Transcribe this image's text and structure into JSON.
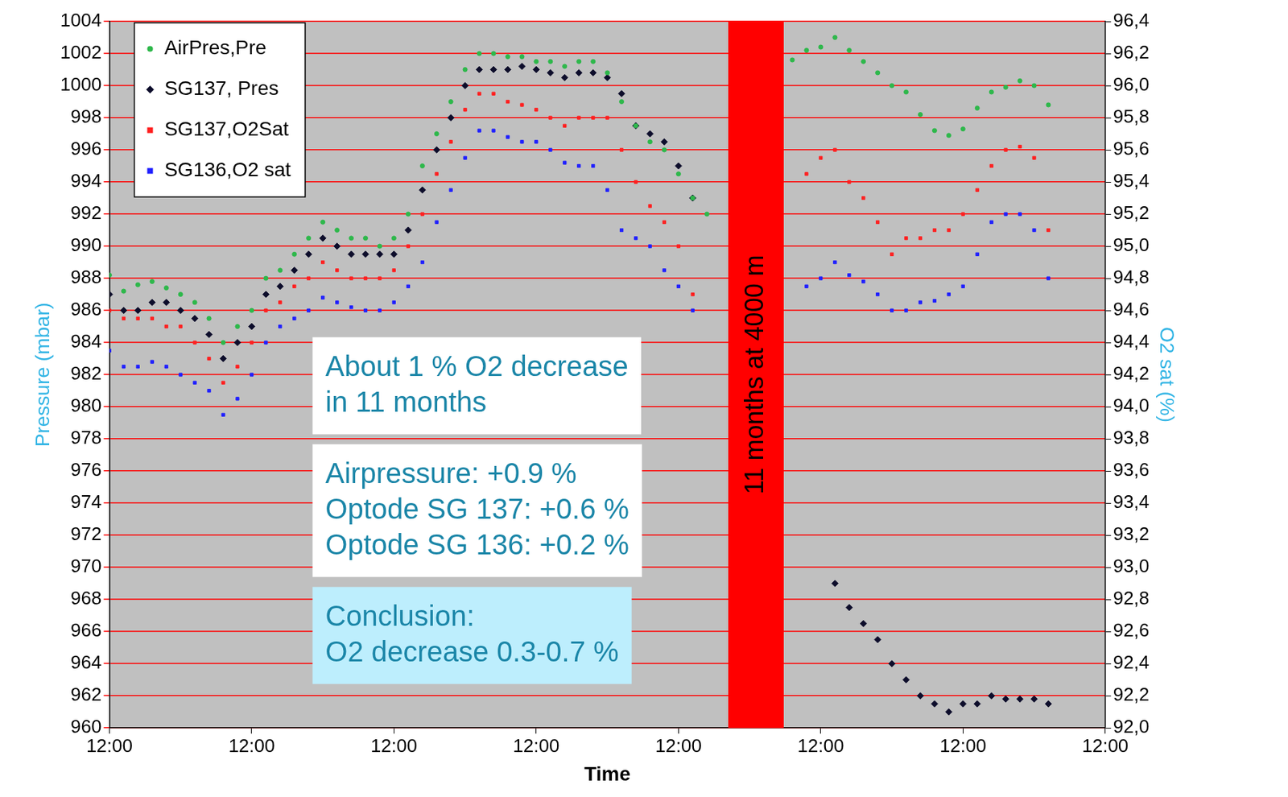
{
  "chart_data": {
    "type": "scatter",
    "x_label": "Time",
    "y_label": "Pressure (mbar)",
    "y2_label": "O2 sat (%)",
    "x": [
      0,
      0.1,
      0.2,
      0.3,
      0.4,
      0.5,
      0.6,
      0.7,
      0.8,
      0.9,
      1.0,
      1.1,
      1.2,
      1.3,
      1.4,
      1.5,
      1.6,
      1.7,
      1.8,
      1.9,
      2.0,
      2.1,
      2.2,
      2.3,
      2.4,
      2.5,
      2.6,
      2.7,
      2.8,
      2.9,
      3.0,
      3.1,
      3.2,
      3.3,
      3.4,
      3.5,
      3.6,
      3.7,
      3.8,
      3.9,
      4.0,
      4.1,
      4.2,
      4.8,
      4.9,
      5.0,
      5.1,
      5.2,
      5.3,
      5.4,
      5.5,
      5.6,
      5.7,
      5.8,
      5.9,
      6.0,
      6.1,
      6.2,
      6.3,
      6.4,
      6.5,
      6.6
    ],
    "xlim": [
      0,
      7
    ],
    "xticks": [
      {
        "value": 0,
        "label": "12:00"
      },
      {
        "value": 1,
        "label": "12:00"
      },
      {
        "value": 2,
        "label": "12:00"
      },
      {
        "value": 3,
        "label": "12:00"
      },
      {
        "value": 4,
        "label": "12:00"
      },
      {
        "value": 5,
        "label": "12:00"
      },
      {
        "value": 6,
        "label": "12:00"
      },
      {
        "value": 7,
        "label": "12:00"
      }
    ],
    "ylim": [
      960,
      1004
    ],
    "yticks": [
      960,
      962,
      964,
      966,
      968,
      970,
      972,
      974,
      976,
      978,
      980,
      982,
      984,
      986,
      988,
      990,
      992,
      994,
      996,
      998,
      1000,
      1002,
      1004
    ],
    "y2lim": [
      92,
      96.4
    ],
    "y2ticks": [
      {
        "value": 92,
        "label": "92,0"
      },
      {
        "value": 92.2,
        "label": "92,2"
      },
      {
        "value": 92.4,
        "label": "92,4"
      },
      {
        "value": 92.6,
        "label": "92,6"
      },
      {
        "value": 92.8,
        "label": "92,8"
      },
      {
        "value": 93,
        "label": "93,0"
      },
      {
        "value": 93.2,
        "label": "93,2"
      },
      {
        "value": 93.4,
        "label": "93,4"
      },
      {
        "value": 93.6,
        "label": "93,6"
      },
      {
        "value": 93.8,
        "label": "93,8"
      },
      {
        "value": 94,
        "label": "94,0"
      },
      {
        "value": 94.2,
        "label": "94,2"
      },
      {
        "value": 94.4,
        "label": "94,4"
      },
      {
        "value": 94.6,
        "label": "94,6"
      },
      {
        "value": 94.8,
        "label": "94,8"
      },
      {
        "value": 95,
        "label": "95,0"
      },
      {
        "value": 95.2,
        "label": "95,2"
      },
      {
        "value": 95.4,
        "label": "95,4"
      },
      {
        "value": 95.6,
        "label": "95,6"
      },
      {
        "value": 95.8,
        "label": "95,8"
      },
      {
        "value": 96,
        "label": "96,0"
      },
      {
        "value": 96.2,
        "label": "96,2"
      },
      {
        "value": 96.4,
        "label": "96,4"
      }
    ],
    "grid": true,
    "legend": "upper left",
    "series": [
      {
        "name": "AirPres,Pre",
        "color": "#2eb84b",
        "marker": "circle",
        "values": [
          988.2,
          987.2,
          987.6,
          987.8,
          987.4,
          987.0,
          986.5,
          985.5,
          984.0,
          985.0,
          986.0,
          988.0,
          988.5,
          989.5,
          990.5,
          991.5,
          991.0,
          990.5,
          990.5,
          990.0,
          990.5,
          992.0,
          995.0,
          997.0,
          999.0,
          1001.0,
          1002.0,
          1002.0,
          1001.8,
          1001.8,
          1001.5,
          1001.5,
          1001.2,
          1001.5,
          1001.5,
          1000.8,
          999.0,
          997.5,
          996.5,
          996.0,
          994.5,
          993.0,
          992.0,
          1001.6,
          1002.2,
          1002.4,
          1003.0,
          1002.2,
          1001.5,
          1000.8,
          1000.0,
          999.6,
          998.2,
          997.2,
          996.9,
          997.3,
          998.6,
          999.6,
          999.9,
          1000.3,
          1000.0,
          998.8
        ]
      },
      {
        "name": "SG137, Pres",
        "color": "#0d0d2b",
        "marker": "diamond",
        "values": [
          987,
          986,
          986,
          986.5,
          986.5,
          986,
          985.5,
          984.5,
          983,
          984,
          985,
          987,
          987.5,
          988.5,
          989.5,
          990.5,
          990,
          989.5,
          989.5,
          989.5,
          989.5,
          991,
          993.5,
          996,
          998,
          1000,
          1001,
          1001,
          1001,
          1001.2,
          1001,
          1000.8,
          1000.5,
          1000.8,
          1000.8,
          1000.5,
          999.5,
          997.5,
          997,
          996.5,
          995,
          993,
          null,
          null,
          null,
          null,
          969,
          967.5,
          966.5,
          965.5,
          964,
          963,
          962,
          961.5,
          961,
          961.5,
          961.5,
          962,
          961.8,
          961.8,
          961.8,
          961.5
        ]
      },
      {
        "name": "SG137,O2Sat",
        "color": "#ff2020",
        "marker": "square",
        "axis": "y2",
        "values": [
          94.6,
          94.55,
          94.55,
          94.55,
          94.5,
          94.5,
          94.4,
          94.3,
          94.15,
          94.25,
          94.4,
          94.6,
          94.65,
          94.75,
          94.8,
          94.9,
          94.85,
          94.8,
          94.8,
          94.8,
          94.85,
          95.0,
          95.2,
          95.45,
          95.65,
          95.85,
          95.95,
          95.95,
          95.9,
          95.88,
          95.85,
          95.8,
          95.75,
          95.8,
          95.8,
          95.8,
          95.6,
          95.4,
          95.25,
          95.15,
          95.0,
          94.7,
          null,
          null,
          95.45,
          95.55,
          95.6,
          95.4,
          95.3,
          95.15,
          94.95,
          95.05,
          95.05,
          95.1,
          95.1,
          95.2,
          95.35,
          95.5,
          95.6,
          95.62,
          95.55,
          95.1
        ]
      },
      {
        "name": "SG136,O2 sat",
        "color": "#2020ff",
        "marker": "square",
        "axis": "y2",
        "values": [
          94.35,
          94.25,
          94.25,
          94.28,
          94.25,
          94.2,
          94.15,
          94.1,
          93.95,
          94.05,
          94.2,
          94.4,
          94.5,
          94.55,
          94.6,
          94.68,
          94.65,
          94.62,
          94.6,
          94.6,
          94.65,
          94.75,
          94.9,
          95.15,
          95.35,
          95.55,
          95.72,
          95.72,
          95.68,
          95.65,
          95.65,
          95.6,
          95.52,
          95.5,
          95.5,
          95.35,
          95.1,
          95.05,
          95.0,
          94.85,
          94.75,
          94.6,
          null,
          null,
          94.75,
          94.8,
          94.9,
          94.82,
          94.78,
          94.7,
          94.6,
          94.6,
          94.65,
          94.66,
          94.7,
          94.75,
          94.95,
          95.15,
          95.2,
          95.2,
          95.1,
          94.8
        ]
      }
    ],
    "band": {
      "label": "11 months at 4000 m",
      "x": [
        4.35,
        4.74
      ],
      "color": "#ff0000"
    },
    "text_boxes": [
      {
        "lines": [
          "About 1 % O2 decrease",
          "in 11 months"
        ],
        "color": "#ffffff"
      },
      {
        "lines": [
          "Airpressure: +0.9 %",
          "Optode SG 137: +0.6 %",
          "Optode SG 136: +0.2 %"
        ],
        "color": "#ffffff"
      },
      {
        "lines": [
          "Conclusion:",
          "O2 decrease 0.3-0.7 %"
        ],
        "color": "#bdeefd"
      }
    ]
  }
}
